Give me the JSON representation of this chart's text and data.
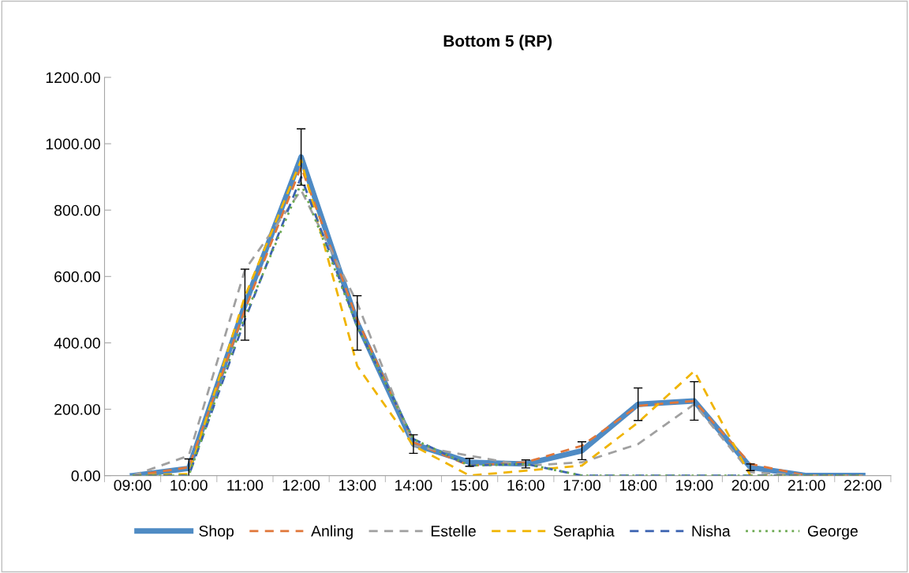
{
  "chart_data": {
    "type": "line",
    "title": "Bottom 5 (RP)",
    "categories": [
      "09:00",
      "10:00",
      "11:00",
      "12:00",
      "13:00",
      "14:00",
      "15:00",
      "16:00",
      "17:00",
      "18:00",
      "19:00",
      "20:00",
      "21:00",
      "22:00"
    ],
    "ylim": [
      0,
      1200
    ],
    "yticks": [
      {
        "value": 0,
        "label": "0.00"
      },
      {
        "value": 200,
        "label": "200.00"
      },
      {
        "value": 400,
        "label": "400.00"
      },
      {
        "value": 600,
        "label": "600.00"
      },
      {
        "value": 800,
        "label": "800.00"
      },
      {
        "value": 1000,
        "label": "1000.00"
      },
      {
        "value": 1200,
        "label": "1200.00"
      }
    ],
    "grid": false,
    "legend": "bottom",
    "marker": "none",
    "series": [
      {
        "name": "Shop",
        "color": "#4f8bc4",
        "line_style": "solid",
        "values": [
          0,
          22,
          515,
          960,
          460,
          95,
          40,
          35,
          75,
          215,
          225,
          25,
          0,
          0
        ],
        "errors": [
          null,
          28,
          107,
          85,
          82,
          28,
          12,
          12,
          27,
          49,
          58,
          10,
          null,
          null
        ]
      },
      {
        "name": "Anling",
        "color": "#e0773a",
        "line_style": "dashed",
        "values": [
          0,
          25,
          500,
          930,
          470,
          100,
          30,
          40,
          90,
          210,
          225,
          35,
          0,
          0
        ]
      },
      {
        "name": "Estelle",
        "color": "#a0a0a0",
        "line_style": "dashed",
        "values": [
          0,
          60,
          620,
          860,
          520,
          90,
          60,
          30,
          40,
          95,
          215,
          10,
          0,
          0
        ]
      },
      {
        "name": "Seraphia",
        "color": "#f0b400",
        "line_style": "dashed",
        "values": [
          0,
          5,
          540,
          950,
          330,
          90,
          0,
          15,
          30,
          160,
          315,
          0,
          0,
          0
        ]
      },
      {
        "name": "Nisha",
        "color": "#3a62b0",
        "line_style": "dashed",
        "values": [
          0,
          0,
          470,
          900,
          450,
          110,
          30,
          35,
          0,
          0,
          0,
          0,
          0,
          0
        ]
      },
      {
        "name": "George",
        "color": "#6aa84f",
        "line_style": "dotted",
        "values": [
          0,
          0,
          480,
          880,
          450,
          110,
          30,
          35,
          0,
          0,
          0,
          0,
          0,
          0
        ]
      }
    ]
  }
}
